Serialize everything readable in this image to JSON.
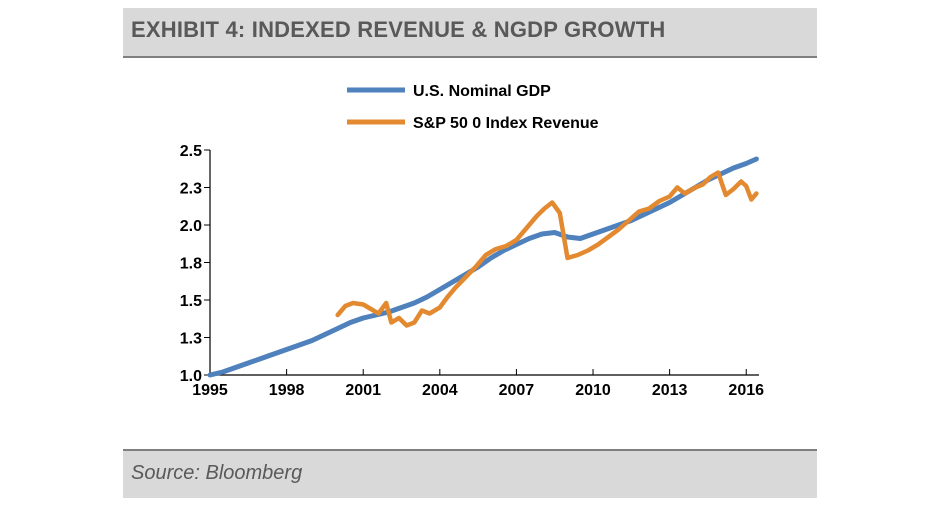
{
  "header": {
    "title": "EXHIBIT 4: INDEXED REVENUE & NGDP GROWTH"
  },
  "footer": {
    "source": "Source: Bloomberg"
  },
  "chart_data": {
    "type": "line",
    "title": "",
    "xlabel": "",
    "ylabel": "",
    "xlim": [
      1995,
      2016.5
    ],
    "ylim": [
      1.0,
      2.5
    ],
    "x_ticks": [
      "1995",
      "1998",
      "2001",
      "2004",
      "2007",
      "2010",
      "2013",
      "2016"
    ],
    "x_tick_values": [
      1995,
      1998,
      2001,
      2004,
      2007,
      2010,
      2013,
      2016
    ],
    "y_ticks": [
      "1.0",
      "1.3",
      "1.5",
      "1.8",
      "2.0",
      "2.3",
      "2.5"
    ],
    "y_tick_values": [
      1.0,
      1.25,
      1.5,
      1.75,
      2.0,
      2.25,
      2.5
    ],
    "grid": false,
    "legend_position": "top-center",
    "series": [
      {
        "name": "U.S. Nominal GDP",
        "color": "#4f81bd",
        "x": [
          1995,
          1995.5,
          1996,
          1996.5,
          1997,
          1997.5,
          1998,
          1998.5,
          1999,
          1999.5,
          2000,
          2000.5,
          2001,
          2001.5,
          2002,
          2002.5,
          2003,
          2003.5,
          2004,
          2004.5,
          2005,
          2005.5,
          2006,
          2006.5,
          2007,
          2007.5,
          2008,
          2008.5,
          2009,
          2009.5,
          2010,
          2010.5,
          2011,
          2011.5,
          2012,
          2012.5,
          2013,
          2013.5,
          2014,
          2014.5,
          2015,
          2015.5,
          2016,
          2016.4
        ],
        "y": [
          1.0,
          1.02,
          1.05,
          1.08,
          1.11,
          1.14,
          1.17,
          1.2,
          1.23,
          1.27,
          1.31,
          1.35,
          1.38,
          1.4,
          1.42,
          1.45,
          1.48,
          1.52,
          1.57,
          1.62,
          1.67,
          1.72,
          1.78,
          1.83,
          1.87,
          1.91,
          1.94,
          1.95,
          1.92,
          1.91,
          1.94,
          1.97,
          2.0,
          2.03,
          2.07,
          2.11,
          2.15,
          2.2,
          2.25,
          2.3,
          2.34,
          2.38,
          2.41,
          2.44
        ]
      },
      {
        "name": "S&P 50 0 Index Revenue",
        "color": "#e38a31",
        "x": [
          2000,
          2000.3,
          2000.6,
          2001,
          2001.3,
          2001.6,
          2001.9,
          2002.1,
          2002.4,
          2002.7,
          2003,
          2003.3,
          2003.6,
          2004,
          2004.3,
          2004.6,
          2005,
          2005.4,
          2005.8,
          2006.2,
          2006.6,
          2007,
          2007.4,
          2007.8,
          2008.1,
          2008.4,
          2008.7,
          2009,
          2009.4,
          2009.8,
          2010.2,
          2010.6,
          2011,
          2011.4,
          2011.8,
          2012.2,
          2012.6,
          2013,
          2013.3,
          2013.6,
          2014,
          2014.3,
          2014.6,
          2014.9,
          2015.2,
          2015.5,
          2015.8,
          2016,
          2016.2,
          2016.4
        ],
        "y": [
          1.4,
          1.46,
          1.48,
          1.47,
          1.44,
          1.41,
          1.48,
          1.35,
          1.38,
          1.33,
          1.35,
          1.43,
          1.41,
          1.45,
          1.52,
          1.58,
          1.65,
          1.72,
          1.8,
          1.84,
          1.86,
          1.9,
          1.98,
          2.06,
          2.11,
          2.15,
          2.08,
          1.78,
          1.8,
          1.83,
          1.87,
          1.92,
          1.97,
          2.03,
          2.09,
          2.11,
          2.16,
          2.19,
          2.25,
          2.21,
          2.25,
          2.27,
          2.32,
          2.35,
          2.2,
          2.24,
          2.29,
          2.26,
          2.17,
          2.21
        ]
      }
    ]
  }
}
